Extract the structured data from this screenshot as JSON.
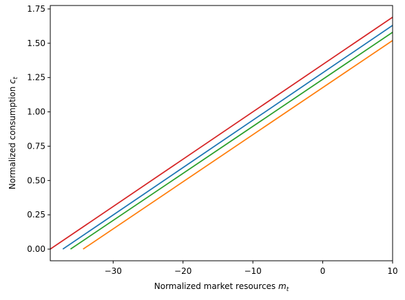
{
  "chart_data": {
    "type": "line",
    "xlabel": "Normalized market resources m",
    "xlabel_sub": "t",
    "ylabel": "Normalized consumption c",
    "ylabel_sub": "t",
    "xlim": [
      -39,
      10
    ],
    "ylim": [
      -0.085,
      1.775
    ],
    "xticks": [
      -30,
      -20,
      -10,
      0,
      10
    ],
    "xtick_labels": [
      "−30",
      "−20",
      "−10",
      "0",
      "10"
    ],
    "yticks": [
      0.0,
      0.25,
      0.5,
      0.75,
      1.0,
      1.25,
      1.5,
      1.75
    ],
    "ytick_labels": [
      "0.00",
      "0.25",
      "0.50",
      "0.75",
      "1.00",
      "1.25",
      "1.50",
      "1.75"
    ],
    "grid": false,
    "series": [
      {
        "color": "#1f77b4",
        "x": [
          -37.2,
          10
        ],
        "y": [
          0.0,
          1.63
        ]
      },
      {
        "color": "#ff7f0e",
        "x": [
          -34.3,
          10
        ],
        "y": [
          0.0,
          1.52
        ]
      },
      {
        "color": "#2ca02c",
        "x": [
          -36.1,
          10
        ],
        "y": [
          0.0,
          1.58
        ]
      },
      {
        "color": "#d62728",
        "x": [
          -39.0,
          10
        ],
        "y": [
          0.0,
          1.69
        ]
      }
    ]
  }
}
